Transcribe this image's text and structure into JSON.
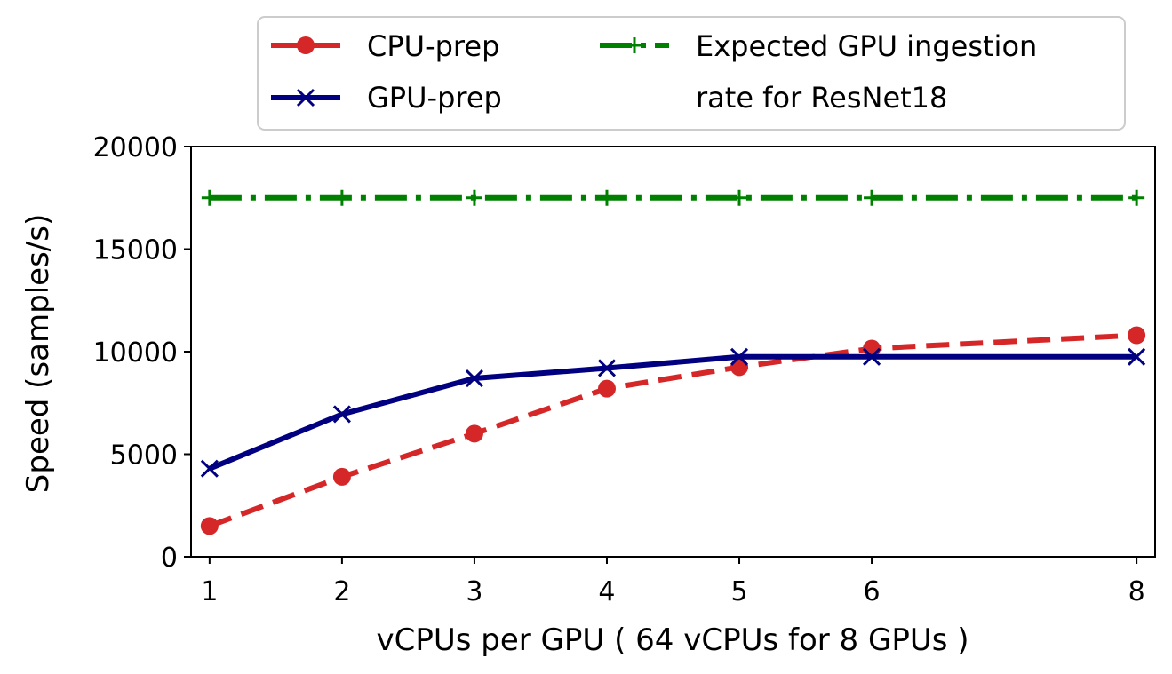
{
  "chart_data": {
    "type": "line",
    "title": "",
    "xlabel": "vCPUs per GPU ( 64 vCPUs for 8 GPUs )",
    "ylabel": "Speed (samples/s)",
    "xlim": [
      0.86,
      8.14
    ],
    "ylim": [
      0,
      20000
    ],
    "x_ticks": [
      1,
      2,
      3,
      4,
      5,
      6,
      8
    ],
    "y_ticks": [
      0,
      5000,
      10000,
      15000,
      20000
    ],
    "grid": false,
    "legend_position": "above plot, right-aligned",
    "series": [
      {
        "name": "CPU-prep",
        "color": "#d62728",
        "line_style": "dashed",
        "marker": "circle",
        "x": [
          1,
          2,
          3,
          4,
          5,
          6,
          8
        ],
        "values": [
          1500,
          3900,
          6000,
          8200,
          9250,
          10150,
          10800
        ]
      },
      {
        "name": "GPU-prep",
        "color": "#000080",
        "line_style": "solid",
        "marker": "x",
        "x": [
          1,
          2,
          3,
          4,
          5,
          6,
          8
        ],
        "values": [
          4300,
          6950,
          8700,
          9200,
          9750,
          9750,
          9750
        ]
      },
      {
        "name": "Expected GPU ingestion rate for ResNet18",
        "legend_lines": [
          "Expected GPU ingestion",
          "rate for ResNet18"
        ],
        "color": "#008000",
        "line_style": "dashdot",
        "marker": "plus",
        "x": [
          1,
          2,
          3,
          4,
          5,
          6,
          8
        ],
        "values": [
          17500,
          17500,
          17500,
          17500,
          17500,
          17500,
          17500
        ]
      }
    ]
  }
}
